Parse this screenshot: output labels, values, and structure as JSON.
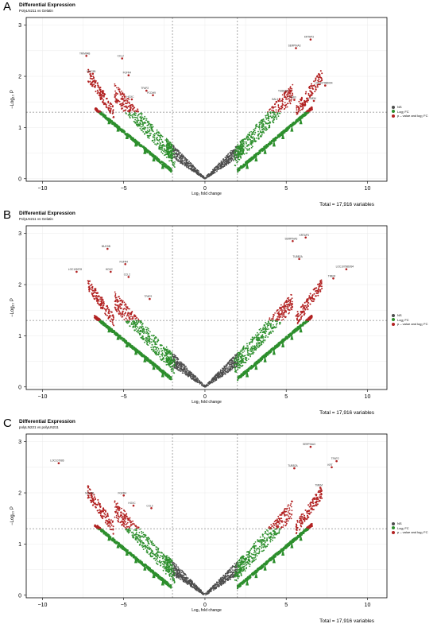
{
  "chart_data": [
    {
      "type": "scatter",
      "panel": "A",
      "title": "Differential Expression",
      "subtitle": "PolyLN211 vs Gelatin",
      "xlabel": "Log₂ fold change",
      "ylabel": "−Log₁₀ P",
      "total": "Total = 17,916 variables",
      "xlim": [
        -11,
        11.2
      ],
      "ylim": [
        -0.05,
        3.15
      ],
      "xticks": [
        -10,
        -5,
        0,
        5,
        10
      ],
      "yticks": [
        0,
        1,
        2,
        3
      ],
      "fc_cutoff": 2,
      "p_cutoff": 1.3,
      "legend": [
        "NS",
        "Log₂ FC",
        "p – value and log₂ FC"
      ],
      "colors": {
        "ns": "#4d4d4d",
        "fc": "#2d8f2d",
        "both": "#b22222"
      },
      "labeled_points": [
        {
          "x": 6.5,
          "y": 2.72,
          "label": "KRTAP3"
        },
        {
          "x": 5.6,
          "y": 2.55,
          "label": "SERPINA3"
        },
        {
          "x": 7.4,
          "y": 1.82,
          "label": "LOC107986094"
        },
        {
          "x": 4.9,
          "y": 1.67,
          "label": "TUBB2A"
        },
        {
          "x": 5.5,
          "y": 1.54,
          "label": "RAB3"
        },
        {
          "x": 6.7,
          "y": 1.52,
          "label": "TMEM"
        },
        {
          "x": 4.4,
          "y": 1.5,
          "label": "GAL3"
        },
        {
          "x": -7.3,
          "y": 2.4,
          "label": "TRIM64B"
        },
        {
          "x": -5.1,
          "y": 2.35,
          "label": "CCL2"
        },
        {
          "x": -6.9,
          "y": 2.05,
          "label": "MUC5B"
        },
        {
          "x": -4.7,
          "y": 2.02,
          "label": "FGFR4"
        },
        {
          "x": -3.6,
          "y": 1.72,
          "label": "TFAP2"
        },
        {
          "x": -3.2,
          "y": 1.63,
          "label": "PCDH9"
        },
        {
          "x": -4.5,
          "y": 1.55,
          "label": "HOXC"
        }
      ]
    },
    {
      "type": "scatter",
      "panel": "B",
      "title": "Differential Expression",
      "subtitle": "PolyLN211 vs Gelatin",
      "xlabel": "Log₂ fold change",
      "ylabel": "−Log₁₀ P",
      "total": "Total = 17,916 variables",
      "xlim": [
        -11,
        11.2
      ],
      "ylim": [
        -0.05,
        3.15
      ],
      "xticks": [
        -10,
        -5,
        0,
        5,
        10
      ],
      "yticks": [
        0,
        1,
        2,
        3
      ],
      "fc_cutoff": 2,
      "p_cutoff": 1.3,
      "legend": [
        "NS",
        "Log₂ FC",
        "p – value and log₂ FC"
      ],
      "colors": {
        "ns": "#4d4d4d",
        "fc": "#2d8f2d",
        "both": "#b22222"
      },
      "labeled_points": [
        {
          "x": 6.2,
          "y": 2.92,
          "label": "KRTAP3"
        },
        {
          "x": 5.4,
          "y": 2.85,
          "label": "SERPINA3"
        },
        {
          "x": 5.8,
          "y": 2.5,
          "label": "TUBB2A"
        },
        {
          "x": 8.7,
          "y": 2.3,
          "label": "LOC107986094"
        },
        {
          "x": 7.9,
          "y": 2.12,
          "label": "TMEM"
        },
        {
          "x": -6.0,
          "y": 2.7,
          "label": "MUC5B"
        },
        {
          "x": -4.9,
          "y": 2.4,
          "label": "FGFR4"
        },
        {
          "x": -7.9,
          "y": 2.25,
          "label": "LOC105378"
        },
        {
          "x": -4.7,
          "y": 2.15,
          "label": "CCL2"
        },
        {
          "x": -5.8,
          "y": 2.25,
          "label": "HOXC"
        },
        {
          "x": -3.4,
          "y": 1.72,
          "label": "TFAP2"
        }
      ]
    },
    {
      "type": "scatter",
      "panel": "C",
      "title": "Differential Expression",
      "subtitle": "polyLN221 vs polyLN211",
      "xlabel": "Log₂ fold change",
      "ylabel": "−Log₁₀ P",
      "total": "Total = 17,916 variables",
      "xlim": [
        -11,
        11.2
      ],
      "ylim": [
        -0.05,
        3.15
      ],
      "xticks": [
        -10,
        -5,
        0,
        5,
        10
      ],
      "yticks": [
        0,
        1,
        2,
        3
      ],
      "fc_cutoff": 2,
      "p_cutoff": 1.3,
      "legend": [
        "NS",
        "Log₂ FC",
        "p – value and log₂ FC"
      ],
      "colors": {
        "ns": "#4d4d4d",
        "fc": "#2d8f2d",
        "both": "#b22222"
      },
      "labeled_points": [
        {
          "x": 6.5,
          "y": 2.9,
          "label": "SERPINA3"
        },
        {
          "x": 8.1,
          "y": 2.62,
          "label": "TFAP2"
        },
        {
          "x": 7.8,
          "y": 2.5,
          "label": "KRT"
        },
        {
          "x": 5.5,
          "y": 2.48,
          "label": "TUBB2A"
        },
        {
          "x": 7.1,
          "y": 2.1,
          "label": "TMEM"
        },
        {
          "x": -9.0,
          "y": 2.58,
          "label": "LOC107986"
        },
        {
          "x": -7.0,
          "y": 1.95,
          "label": "MUC5B"
        },
        {
          "x": -5.0,
          "y": 1.95,
          "label": "FGFR4"
        },
        {
          "x": -3.3,
          "y": 1.7,
          "label": "CCL2"
        },
        {
          "x": -4.4,
          "y": 1.75,
          "label": "HOXC"
        }
      ]
    }
  ]
}
